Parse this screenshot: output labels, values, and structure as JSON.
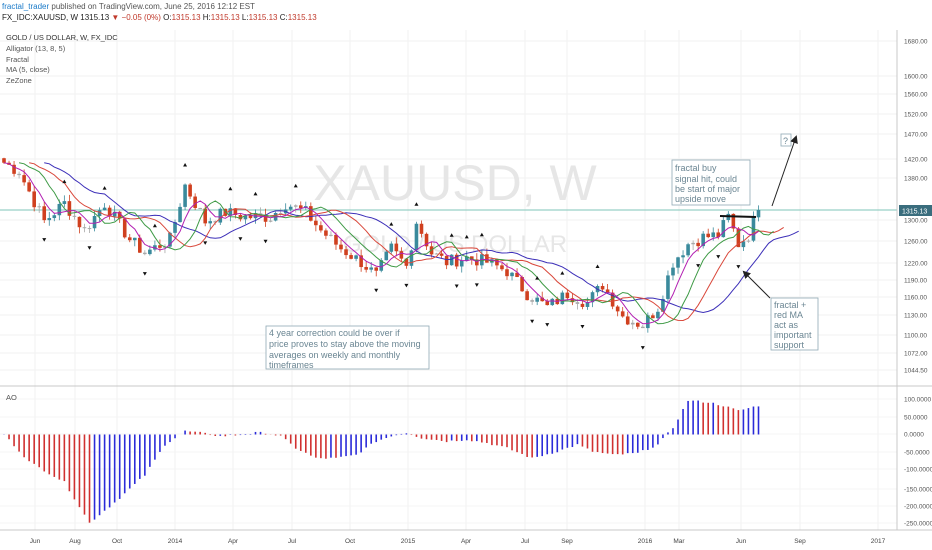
{
  "header": {
    "user": "fractal_trader",
    "published": "published on TradingView.com, June 25, 2016 12:12 EST",
    "symbol_line": "FX_IDC:XAUUSD, W",
    "last": "1315.13",
    "change": "▼ −0.05 (0%)",
    "o_label": "O:",
    "o": "1315.13",
    "h_label": "H:",
    "h": "1315.13",
    "l_label": "L:",
    "l": "1315.13",
    "c_label": "C:",
    "c": "1315.13"
  },
  "legend": {
    "title": "GOLD / US DOLLAR, W, FX_IDC",
    "alligator": "Alligator (13, 8, 5)",
    "fractal": "Fractal",
    "ma": "MA (5, close)",
    "zone": "ZeZone"
  },
  "watermark": {
    "symbol": "XAUUSD, W",
    "name": "GOLD / US DOLLAR"
  },
  "annotations": {
    "correction": [
      "4 year correction could be over if",
      "price proves to stay above the moving",
      "averages on weekly and monthly",
      "timeframes"
    ],
    "buy_signal": [
      "fractal buy",
      "signal hit, could",
      "be start of major",
      "upside move"
    ],
    "support": [
      "fractal +",
      "red MA",
      "act as",
      "important",
      "support"
    ],
    "question": "?"
  },
  "ao_label": "AO",
  "price_badge": "1315.13",
  "colors": {
    "up": "#3a8a9c",
    "down": "#d0401f",
    "neutral": "#a8a8a8",
    "jaw": "#3c2fb8",
    "teeth": "#d9473a",
    "lips": "#3e9a45",
    "ma": "#b21fb2",
    "ao_up": "#2a2ad8",
    "ao_down": "#d03030",
    "badge": "#3a6d7d"
  },
  "chart_data": [
    {
      "type": "candlestick",
      "title": "GOLD / US DOLLAR, W, FX_IDC",
      "x_tick_labels": [
        "Jun",
        "Aug",
        "Oct",
        "2014",
        "Apr",
        "Jul",
        "Oct",
        "2015",
        "Apr",
        "Jul",
        "Sep",
        "2016",
        "Mar",
        "Jun",
        "Sep",
        "2017"
      ],
      "y_tick_labels": [
        "1680.00",
        "1600.00",
        "1560.00",
        "1520.00",
        "1470.00",
        "1420.00",
        "1380.00",
        "1300.00",
        "1260.00",
        "1220.00",
        "1190.00",
        "1160.00",
        "1130.00",
        "1100.00",
        "1072.00",
        "1044.50"
      ],
      "last_price": 1315.13,
      "close_anchors": [
        [
          0,
          1420
        ],
        [
          3,
          1400
        ],
        [
          8,
          1290
        ],
        [
          12,
          1330
        ],
        [
          16,
          1270
        ],
        [
          20,
          1330
        ],
        [
          25,
          1250
        ],
        [
          28,
          1220
        ],
        [
          33,
          1250
        ],
        [
          36,
          1370
        ],
        [
          40,
          1290
        ],
        [
          44,
          1310
        ],
        [
          48,
          1300
        ],
        [
          53,
          1300
        ],
        [
          56,
          1330
        ],
        [
          60,
          1310
        ],
        [
          63,
          1270
        ],
        [
          67,
          1230
        ],
        [
          71,
          1200
        ],
        [
          74,
          1170
        ],
        [
          77,
          1230
        ],
        [
          80,
          1190
        ],
        [
          82,
          1290
        ],
        [
          85,
          1220
        ],
        [
          88,
          1200
        ],
        [
          92,
          1210
        ],
        [
          96,
          1200
        ],
        [
          100,
          1180
        ],
        [
          104,
          1130
        ],
        [
          108,
          1100
        ],
        [
          112,
          1130
        ],
        [
          116,
          1110
        ],
        [
          119,
          1150
        ],
        [
          123,
          1080
        ],
        [
          127,
          1060
        ],
        [
          130,
          1100
        ],
        [
          133,
          1200
        ],
        [
          136,
          1240
        ],
        [
          139,
          1255
        ],
        [
          142,
          1260
        ],
        [
          144,
          1300
        ],
        [
          146,
          1240
        ],
        [
          148,
          1260
        ],
        [
          150,
          1315
        ]
      ],
      "grid": true
    },
    {
      "type": "bar",
      "title": "AO",
      "y_tick_labels": [
        "100.0000",
        "50.0000",
        "0.0000",
        "-50.0000",
        "-100.0000",
        "-150.0000",
        "-200.0000",
        "-250.0000"
      ],
      "ylim": [
        -260,
        110
      ],
      "ao_anchors": [
        [
          0,
          0
        ],
        [
          5,
          -80
        ],
        [
          12,
          -140
        ],
        [
          17,
          -260
        ],
        [
          22,
          -200
        ],
        [
          28,
          -120
        ],
        [
          32,
          -30
        ],
        [
          36,
          10
        ],
        [
          39,
          5
        ],
        [
          43,
          -5
        ],
        [
          48,
          0
        ],
        [
          50,
          5
        ],
        [
          52,
          5
        ],
        [
          55,
          -5
        ],
        [
          58,
          -40
        ],
        [
          62,
          -70
        ],
        [
          66,
          -70
        ],
        [
          70,
          -60
        ],
        [
          74,
          -20
        ],
        [
          78,
          0
        ],
        [
          80,
          5
        ],
        [
          83,
          -10
        ],
        [
          88,
          -20
        ],
        [
          92,
          -15
        ],
        [
          96,
          -25
        ],
        [
          100,
          -40
        ],
        [
          105,
          -70
        ],
        [
          110,
          -50
        ],
        [
          114,
          -30
        ],
        [
          117,
          -50
        ],
        [
          121,
          -60
        ],
        [
          126,
          -55
        ],
        [
          130,
          -30
        ],
        [
          133,
          20
        ],
        [
          136,
          100
        ],
        [
          140,
          95
        ],
        [
          143,
          85
        ],
        [
          146,
          70
        ],
        [
          150,
          85
        ]
      ]
    }
  ]
}
